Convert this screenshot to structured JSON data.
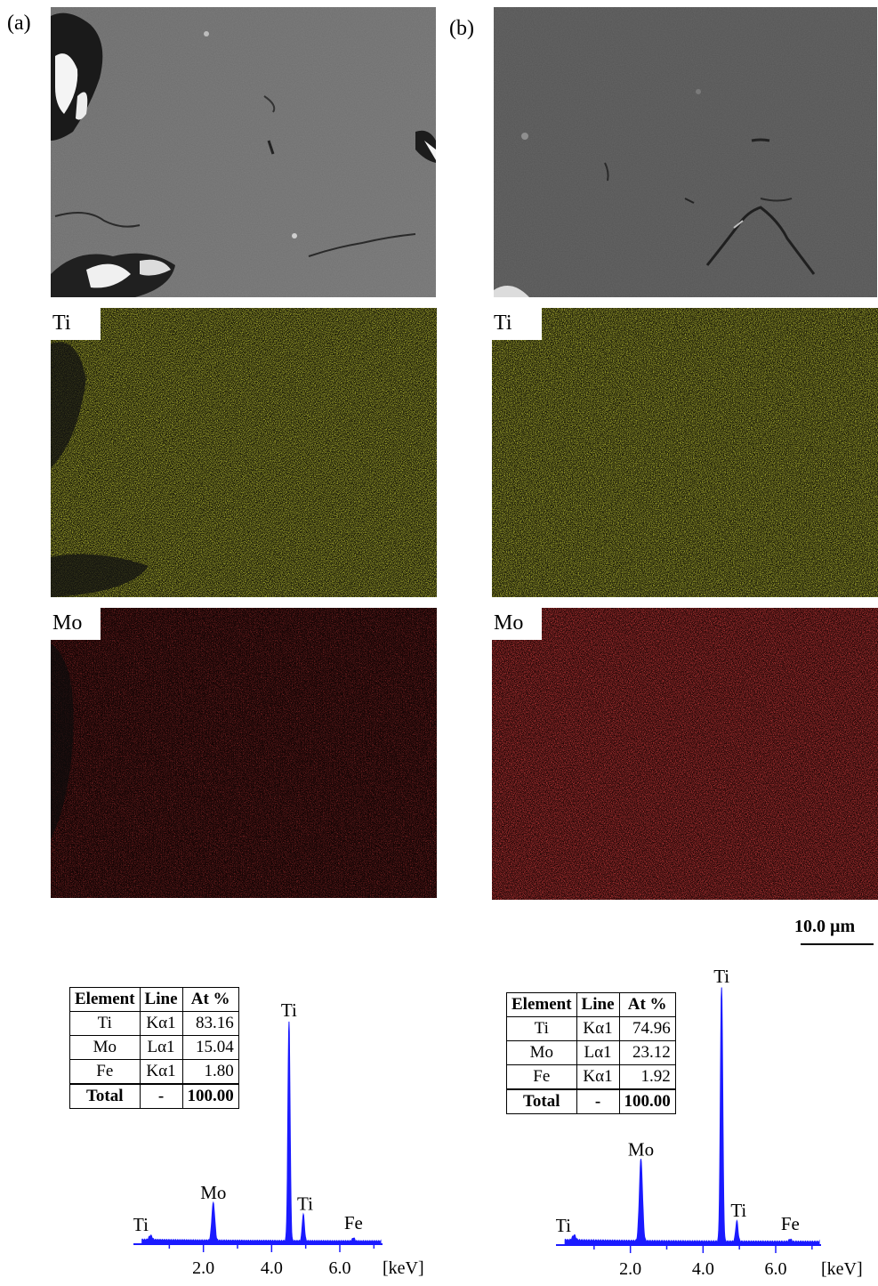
{
  "panels": [
    {
      "id": "a",
      "label": "(a)",
      "maps": [
        {
          "element": "Ti",
          "color": "#c8d400"
        },
        {
          "element": "Mo",
          "color": "#c01010"
        }
      ],
      "table": {
        "headers": [
          "Element",
          "Line",
          "At %"
        ],
        "rows": [
          {
            "element": "Ti",
            "line": "Kα1",
            "at": "83.16"
          },
          {
            "element": "Mo",
            "line": "Lα1",
            "at": "15.04"
          },
          {
            "element": "Fe",
            "line": "Kα1",
            "at": "1.80"
          }
        ],
        "total": {
          "element": "Total",
          "line": "-",
          "at": "100.00"
        }
      },
      "spectrum": {
        "peaks": [
          {
            "label": "Ti",
            "kev": 0.45,
            "height": 0.02
          },
          {
            "label": "Mo",
            "kev": 2.29,
            "height": 0.17
          },
          {
            "label": "Ti",
            "kev": 4.51,
            "height": 1.0
          },
          {
            "label": "Ti",
            "kev": 4.93,
            "height": 0.12
          },
          {
            "label": "Fe",
            "kev": 6.4,
            "height": 0.015
          }
        ],
        "x_ticks": [
          "2.0",
          "4.0",
          "6.0"
        ],
        "unit": "[keV]"
      }
    },
    {
      "id": "b",
      "label": "(b)",
      "maps": [
        {
          "element": "Ti",
          "color": "#c8d400"
        },
        {
          "element": "Mo",
          "color": "#c01010"
        }
      ],
      "table": {
        "headers": [
          "Element",
          "Line",
          "At %"
        ],
        "rows": [
          {
            "element": "Ti",
            "line": "Kα1",
            "at": "74.96"
          },
          {
            "element": "Mo",
            "line": "Lα1",
            "at": "23.12"
          },
          {
            "element": "Fe",
            "line": "Kα1",
            "at": "1.92"
          }
        ],
        "total": {
          "element": "Total",
          "line": "-",
          "at": "100.00"
        }
      },
      "spectrum": {
        "peaks": [
          {
            "label": "Ti",
            "kev": 0.45,
            "height": 0.02
          },
          {
            "label": "Mo",
            "kev": 2.29,
            "height": 0.32
          },
          {
            "label": "Ti",
            "kev": 4.51,
            "height": 1.0
          },
          {
            "label": "Ti",
            "kev": 4.93,
            "height": 0.08
          },
          {
            "label": "Fe",
            "kev": 6.4,
            "height": 0.01
          }
        ],
        "x_ticks": [
          "2.0",
          "4.0",
          "6.0"
        ],
        "unit": "[keV]"
      }
    }
  ],
  "scale_bar": {
    "label": "10.0 µm"
  },
  "colors": {
    "spectrum": "#1a1aff",
    "sem_base": "#6e6e6e"
  }
}
